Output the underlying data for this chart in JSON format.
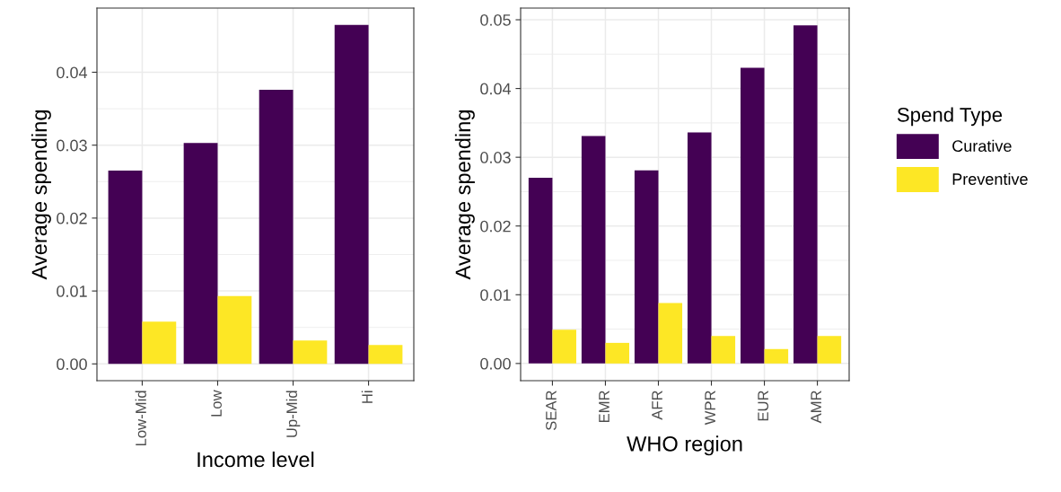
{
  "chart_data": [
    {
      "type": "bar",
      "xlabel": "Income level",
      "ylabel": "Average spending",
      "categories": [
        "Low-Mid",
        "Low",
        "Up-Mid",
        "Hi"
      ],
      "series": [
        {
          "color": "#440154",
          "values": [
            0.0265,
            0.0303,
            0.0376,
            0.0465
          ]
        },
        {
          "color": "#fde725",
          "values": [
            0.0058,
            0.0093,
            0.0032,
            0.0026
          ]
        }
      ],
      "ylim": [
        -0.0023,
        0.0488
      ],
      "yticks": [
        {
          "value": 0,
          "label": "0.00"
        },
        {
          "value": 0.01,
          "label": "0.01"
        },
        {
          "value": 0.02,
          "label": "0.02"
        },
        {
          "value": 0.03,
          "label": "0.03"
        },
        {
          "value": 0.04,
          "label": "0.04"
        }
      ],
      "grid": true
    },
    {
      "type": "bar",
      "xlabel": "WHO region",
      "ylabel": "Average spending",
      "categories": [
        "SEAR",
        "EMR",
        "AFR",
        "WPR",
        "EUR",
        "AMR"
      ],
      "legend_title": "Spend Type",
      "series": [
        {
          "name": "Curative",
          "color": "#440154",
          "values": [
            0.027,
            0.0331,
            0.0281,
            0.0336,
            0.043,
            0.0492
          ]
        },
        {
          "name": "Preventive",
          "color": "#fde725",
          "values": [
            0.0049,
            0.003,
            0.0088,
            0.004,
            0.0021,
            0.004
          ]
        }
      ],
      "ylim": [
        -0.0025,
        0.0517
      ],
      "yticks": [
        {
          "value": 0,
          "label": "0.00"
        },
        {
          "value": 0.01,
          "label": "0.01"
        },
        {
          "value": 0.02,
          "label": "0.02"
        },
        {
          "value": 0.03,
          "label": "0.03"
        },
        {
          "value": 0.04,
          "label": "0.04"
        },
        {
          "value": 0.05,
          "label": "0.05"
        }
      ],
      "grid": true,
      "legend": "right"
    }
  ]
}
